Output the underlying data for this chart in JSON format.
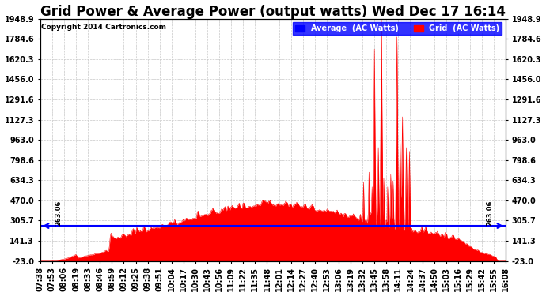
{
  "title": "Grid Power & Average Power (output watts) Wed Dec 17 16:14",
  "copyright": "Copyright 2014 Cartronics.com",
  "legend_labels": [
    "Average  (AC Watts)",
    "Grid  (AC Watts)"
  ],
  "legend_colors": [
    "blue",
    "red"
  ],
  "average_line_value": 263.06,
  "yticks": [
    -23.0,
    141.3,
    305.7,
    470.0,
    634.3,
    798.6,
    963.0,
    1127.3,
    1291.6,
    1456.0,
    1620.3,
    1784.6,
    1948.9
  ],
  "ymin": -23.0,
  "ymax": 1948.9,
  "background_color": "#ffffff",
  "grid_color": "#c8c8c8",
  "fill_color": "#ff0000",
  "avg_line_color": "blue",
  "title_fontsize": 12,
  "tick_fontsize": 7,
  "tick_labels": [
    "07:38",
    "07:53",
    "08:06",
    "08:19",
    "08:33",
    "08:46",
    "08:59",
    "09:12",
    "09:25",
    "09:38",
    "09:51",
    "10:04",
    "10:17",
    "10:30",
    "10:43",
    "10:56",
    "11:09",
    "11:22",
    "11:35",
    "11:48",
    "12:01",
    "12:14",
    "12:27",
    "12:40",
    "12:53",
    "13:06",
    "13:19",
    "13:32",
    "13:45",
    "13:58",
    "14:11",
    "14:24",
    "14:37",
    "14:50",
    "15:03",
    "15:16",
    "15:29",
    "15:42",
    "15:55",
    "16:08"
  ]
}
